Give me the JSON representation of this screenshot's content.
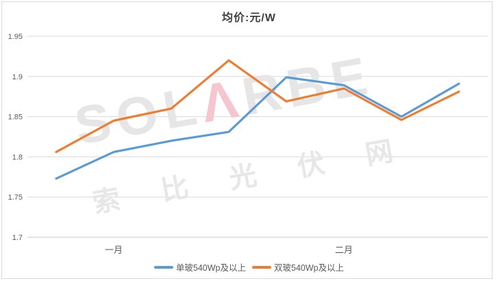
{
  "title": {
    "text": "均价:元/W"
  },
  "watermark": {
    "logo_prefix": "SOL",
    "logo_accent": "Λ",
    "logo_suffix": "RBE",
    "chinese_text": "索比光伏网"
  },
  "colors": {
    "series1": "#5B9BD5",
    "series2": "#ED7D31",
    "grid": "#D9D9D9",
    "axis_line": "#C9C9C9",
    "tick_text": "#595959",
    "title_text": "#404040",
    "border": "#D9D9D9",
    "watermark_gray": "#E6E6E6",
    "watermark_pink": "#F5C6CF"
  },
  "chart_data": {
    "type": "line",
    "title": "均价:元/W",
    "xlabel": "",
    "ylabel": "元/W",
    "categories": [
      "",
      "一月",
      "",
      "",
      "",
      "二月",
      "",
      ""
    ],
    "series": [
      {
        "name": "单玻540Wp及以上",
        "color": "#5B9BD5",
        "values": [
          1.773,
          1.806,
          1.82,
          1.831,
          1.899,
          1.889,
          1.85,
          1.891
        ]
      },
      {
        "name": "双玻540Wp及以上",
        "color": "#ED7D31",
        "values": [
          1.806,
          1.845,
          1.86,
          1.92,
          1.869,
          1.885,
          1.846,
          1.881
        ]
      }
    ],
    "ylim": [
      1.7,
      1.95
    ],
    "y_ticks": [
      1.7,
      1.75,
      1.8,
      1.85,
      1.9,
      1.95
    ],
    "grid": true,
    "legend_position": "bottom"
  }
}
